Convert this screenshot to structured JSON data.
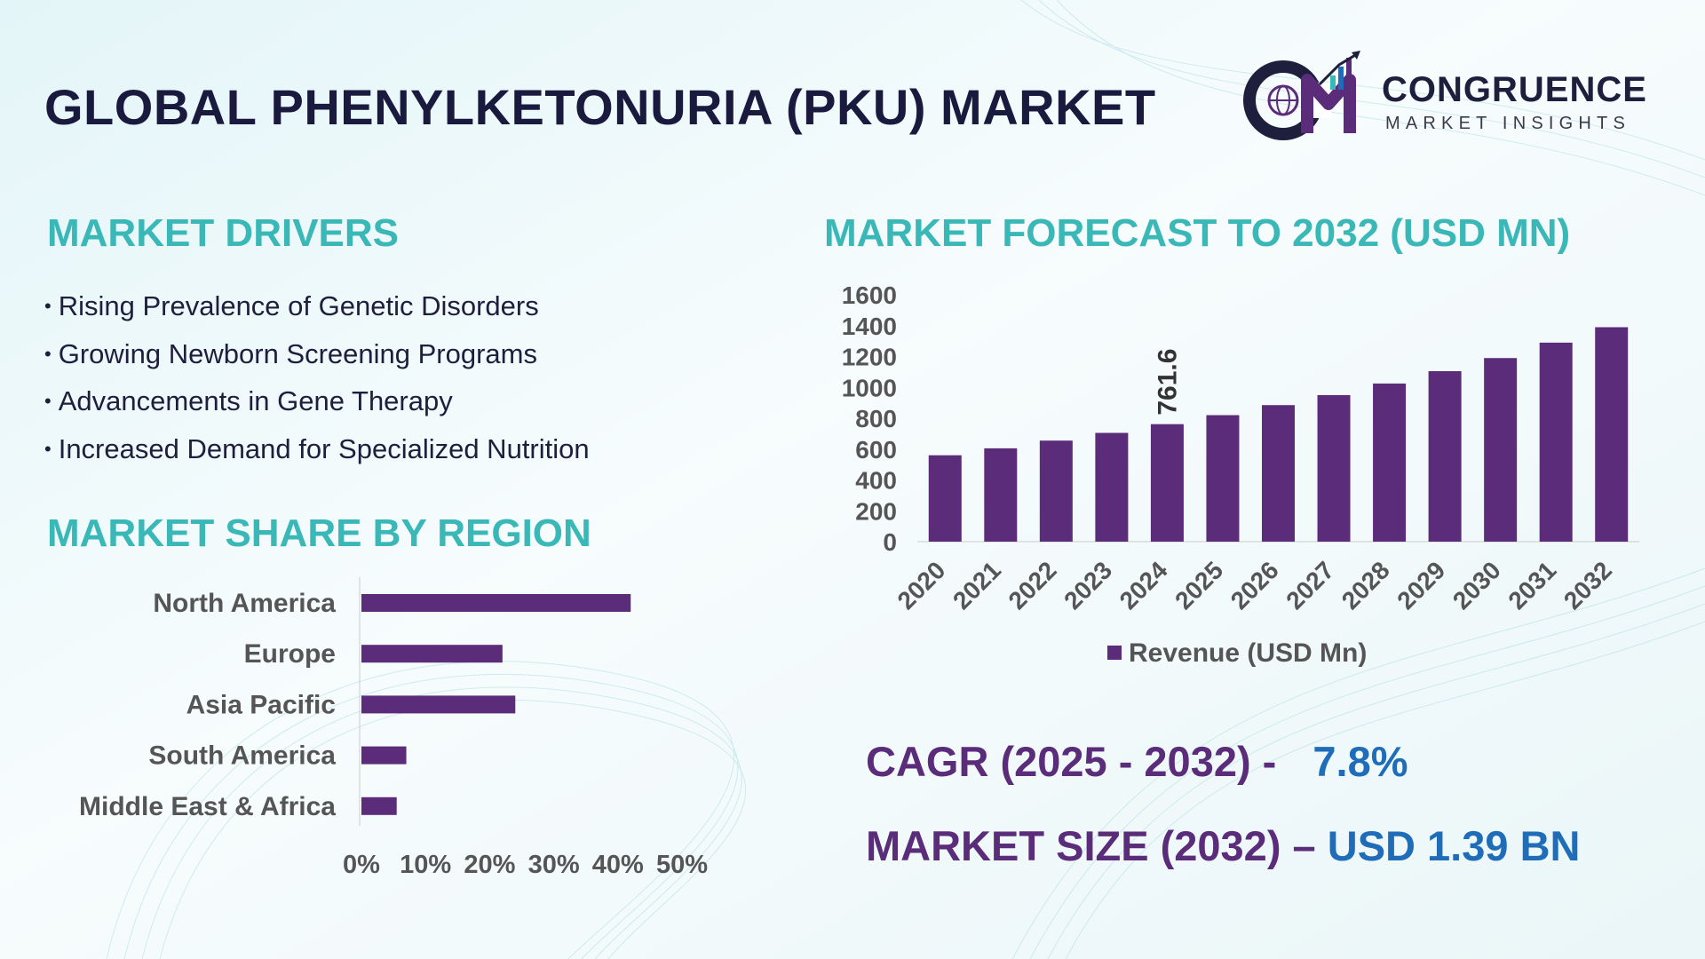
{
  "header": {
    "title": "GLOBAL PHENYLKETONURIA (PKU) MARKET",
    "logo": {
      "name": "CONGRUENCE",
      "tagline": "MARKET INSIGHTS",
      "mark_icon": "cmi-globe-chart-logo"
    }
  },
  "drivers": {
    "heading": "MARKET DRIVERS",
    "items": [
      "Rising Prevalence of Genetic Disorders",
      "Growing Newborn Screening Programs",
      "Advancements in Gene Therapy",
      "Increased Demand for Specialized Nutrition"
    ]
  },
  "forecast_heading": "MARKET FORECAST TO 2032 (USD MN)",
  "region_heading": "MARKET SHARE BY REGION",
  "kpis": {
    "cagr_label": "CAGR (2025 - 2032) -",
    "cagr_value": "7.8%",
    "size_label": "MARKET SIZE (2032) –",
    "size_value": "USD 1.39 BN"
  },
  "colors": {
    "bar": "#5a2c79",
    "heading": "#3ab7b7",
    "title": "#191a3d",
    "kpi_value": "#1f6db8"
  },
  "chart_data": [
    {
      "type": "bar",
      "categories": [
        "2020",
        "2021",
        "2022",
        "2023",
        "2024",
        "2025",
        "2026",
        "2027",
        "2028",
        "2029",
        "2030",
        "2031",
        "2032"
      ],
      "series": [
        {
          "name": "Revenue (USD Mn)",
          "values": [
            560,
            605,
            655,
            705,
            761.6,
            820,
            885,
            950,
            1025,
            1105,
            1190,
            1290,
            1390
          ]
        }
      ],
      "ylim": [
        0,
        1600
      ],
      "yticks": [
        0,
        200,
        400,
        600,
        800,
        1000,
        1200,
        1400,
        1600
      ],
      "data_labels": [
        {
          "category": "2024",
          "text": "761.6"
        }
      ],
      "legend": "bottom",
      "grid": false
    },
    {
      "type": "bar",
      "orientation": "horizontal",
      "categories": [
        "North America",
        "Europe",
        "Asia Pacific",
        "South America",
        "Middle East & Africa"
      ],
      "values": [
        42,
        22,
        24,
        7,
        5.5
      ],
      "xlim": [
        0,
        50
      ],
      "xticks": [
        "0%",
        "10%",
        "20%",
        "30%",
        "40%",
        "50%"
      ],
      "grid": false
    }
  ]
}
